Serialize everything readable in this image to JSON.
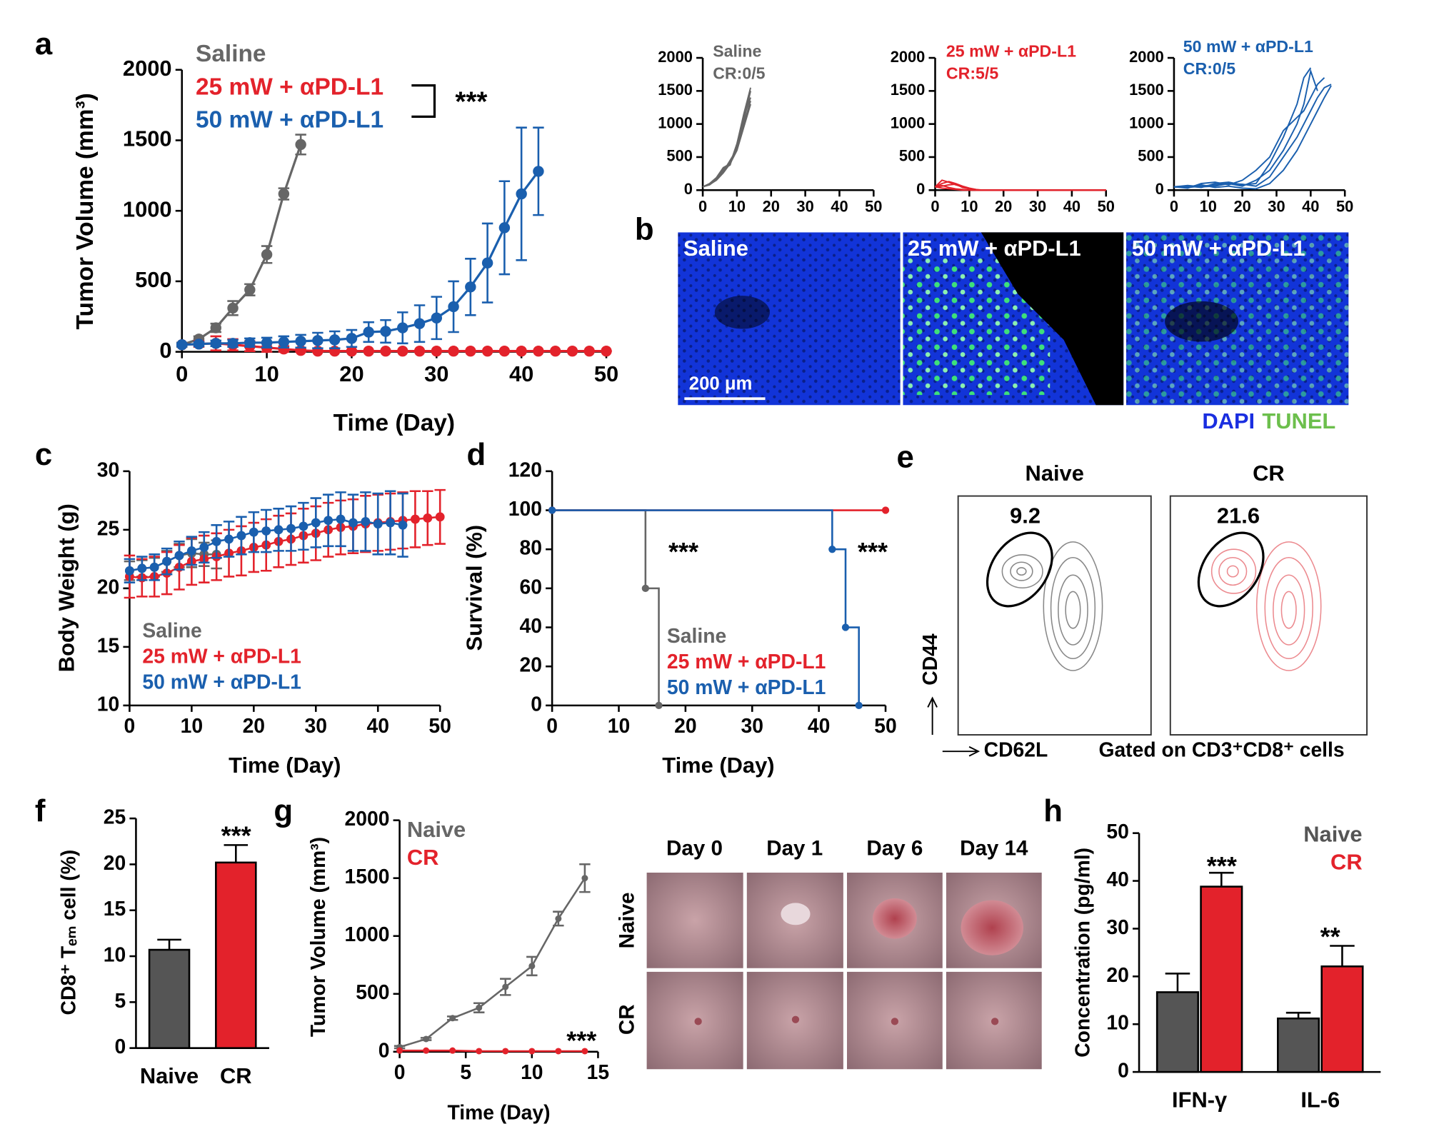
{
  "chart_data": [
    {
      "type": "line",
      "label": "a",
      "xlabel": "Time (Day)",
      "ylabel": "Tumor Volume (mm³)",
      "xlim": [
        0,
        50
      ],
      "ylim": [
        0,
        2000
      ],
      "xticks": [
        0,
        10,
        20,
        30,
        40,
        50
      ],
      "yticks": [
        0,
        500,
        1000,
        1500,
        2000
      ],
      "markers": true,
      "annotations": [
        "***"
      ],
      "series": [
        {
          "name": "Saline",
          "color": "#666666",
          "x": [
            0,
            2,
            4,
            6,
            8,
            10,
            12,
            14
          ],
          "values": [
            50,
            90,
            170,
            310,
            440,
            690,
            1120,
            1470
          ],
          "errors": [
            15,
            20,
            30,
            50,
            40,
            60,
            40,
            70
          ]
        },
        {
          "name": "25 mW + αPD-L1",
          "color": "#e3222b",
          "x": [
            0,
            2,
            4,
            6,
            8,
            10,
            12,
            14,
            16,
            18,
            20,
            22,
            24,
            26,
            28,
            30,
            32,
            34,
            36,
            38,
            40,
            42,
            44,
            46,
            48,
            50
          ],
          "values": [
            50,
            55,
            60,
            50,
            40,
            30,
            20,
            10,
            5,
            5,
            5,
            5,
            5,
            5,
            5,
            5,
            5,
            5,
            5,
            5,
            5,
            5,
            5,
            5,
            5,
            5
          ],
          "errors": [
            5,
            20,
            50,
            40,
            35,
            30,
            20,
            10,
            5,
            0,
            0,
            0,
            0,
            0,
            0,
            0,
            0,
            0,
            0,
            0,
            0,
            0,
            0,
            0,
            0,
            0
          ]
        },
        {
          "name": "50 mW + αPD-L1",
          "color": "#1a5fae",
          "x": [
            0,
            2,
            4,
            6,
            8,
            10,
            12,
            14,
            16,
            18,
            20,
            22,
            24,
            26,
            28,
            30,
            32,
            34,
            36,
            38,
            40,
            42
          ],
          "values": [
            50,
            55,
            60,
            60,
            65,
            65,
            70,
            75,
            80,
            85,
            95,
            140,
            145,
            170,
            200,
            240,
            320,
            460,
            630,
            880,
            1120,
            1280
          ],
          "errors": [
            10,
            15,
            20,
            25,
            30,
            35,
            40,
            45,
            55,
            60,
            60,
            70,
            80,
            110,
            130,
            150,
            180,
            200,
            280,
            330,
            470,
            310
          ]
        }
      ]
    },
    {
      "type": "line",
      "title": "Saline",
      "subtitle": "CR:0/5",
      "color": "#666666",
      "xlim": [
        0,
        50
      ],
      "ylim": [
        0,
        2000
      ],
      "xticks": [
        0,
        10,
        20,
        30,
        40,
        50
      ],
      "yticks": [
        0,
        500,
        1000,
        1500,
        2000
      ],
      "x": [
        0,
        2,
        4,
        6,
        8,
        10,
        12,
        14
      ],
      "series": [
        {
          "values": [
            50,
            90,
            170,
            300,
            420,
            650,
            1050,
            1500
          ]
        },
        {
          "values": [
            50,
            100,
            190,
            340,
            400,
            700,
            1100,
            1400
          ]
        },
        {
          "values": [
            50,
            80,
            160,
            280,
            450,
            620,
            1000,
            1350
          ]
        },
        {
          "values": [
            50,
            95,
            180,
            320,
            380,
            700,
            1150,
            1550
          ]
        },
        {
          "values": [
            50,
            85,
            150,
            260,
            400,
            600,
            950,
            1300
          ]
        }
      ]
    },
    {
      "type": "line",
      "title": "25 mW + αPD-L1",
      "subtitle": "CR:5/5",
      "color": "#e3222b",
      "xlim": [
        0,
        50
      ],
      "ylim": [
        0,
        2000
      ],
      "xticks": [
        0,
        10,
        20,
        30,
        40,
        50
      ],
      "yticks": [
        0,
        500,
        1000,
        1500,
        2000
      ],
      "x": [
        0,
        2,
        4,
        6,
        8,
        10,
        12,
        14,
        16,
        18,
        20,
        25,
        30,
        35,
        40,
        45,
        50
      ],
      "series": [
        {
          "values": [
            50,
            150,
            120,
            80,
            50,
            20,
            0,
            0,
            0,
            0,
            0,
            0,
            0,
            0,
            0,
            0,
            0
          ]
        },
        {
          "values": [
            50,
            100,
            130,
            100,
            60,
            30,
            10,
            0,
            0,
            0,
            0,
            0,
            0,
            0,
            0,
            0,
            0
          ]
        },
        {
          "values": [
            50,
            60,
            80,
            90,
            40,
            20,
            0,
            0,
            0,
            0,
            0,
            0,
            0,
            0,
            0,
            0,
            0
          ]
        },
        {
          "values": [
            50,
            70,
            40,
            20,
            10,
            0,
            0,
            0,
            0,
            0,
            0,
            0,
            0,
            0,
            0,
            0,
            0
          ]
        },
        {
          "values": [
            50,
            30,
            20,
            10,
            0,
            0,
            0,
            0,
            0,
            0,
            0,
            0,
            0,
            0,
            0,
            0,
            0
          ]
        }
      ]
    },
    {
      "type": "line",
      "title": "50 mW + αPD-L1",
      "subtitle": "CR:0/5",
      "color": "#1a5fae",
      "xlim": [
        0,
        50
      ],
      "ylim": [
        0,
        2000
      ],
      "xticks": [
        0,
        10,
        20,
        30,
        40,
        50
      ],
      "yticks": [
        0,
        500,
        1000,
        1500,
        2000
      ],
      "x": [
        0,
        4,
        8,
        12,
        16,
        20,
        24,
        28,
        32,
        36,
        38,
        40,
        42,
        44,
        46
      ],
      "series": [
        {
          "values": [
            50,
            40,
            60,
            80,
            100,
            60,
            150,
            300,
            600,
            1000,
            1300,
            1800,
            1500,
            null,
            null
          ]
        },
        {
          "values": [
            50,
            60,
            40,
            100,
            120,
            80,
            100,
            400,
            800,
            1300,
            1700,
            1850,
            null,
            null,
            null
          ]
        },
        {
          "values": [
            50,
            30,
            100,
            120,
            80,
            150,
            300,
            500,
            900,
            1100,
            1200,
            1400,
            1600,
            1700,
            null
          ]
        },
        {
          "values": [
            50,
            70,
            50,
            60,
            100,
            90,
            60,
            200,
            500,
            800,
            1000,
            1200,
            1400,
            1550,
            1600
          ]
        },
        {
          "values": [
            50,
            50,
            80,
            40,
            60,
            30,
            20,
            100,
            300,
            600,
            800,
            1000,
            1200,
            1400,
            1580
          ]
        }
      ]
    },
    {
      "type": "line",
      "label": "c",
      "xlabel": "Time (Day)",
      "ylabel": "Body Weight (g)",
      "xlim": [
        0,
        50
      ],
      "ylim": [
        10,
        30
      ],
      "xticks": [
        0,
        10,
        20,
        30,
        40,
        50
      ],
      "yticks": [
        10,
        15,
        20,
        25,
        30
      ],
      "markers": true,
      "series": [
        {
          "name": "Saline",
          "color": "#666666",
          "x": [
            0,
            2,
            4,
            6,
            8,
            10,
            12,
            14
          ],
          "values": [
            21.5,
            21.7,
            21.8,
            22.3,
            22.8,
            23.0,
            22.9,
            22.9
          ],
          "errors": [
            0.8,
            0.7,
            0.8,
            0.9,
            1.0,
            1.2,
            1.0,
            1.2
          ]
        },
        {
          "name": "25 mW + αPD-L1",
          "color": "#e3222b",
          "x": [
            0,
            2,
            4,
            6,
            8,
            10,
            12,
            14,
            16,
            18,
            20,
            22,
            24,
            26,
            28,
            30,
            32,
            34,
            36,
            38,
            40,
            42,
            44,
            46,
            48,
            50
          ],
          "values": [
            21.0,
            20.9,
            21.0,
            21.3,
            21.8,
            22.3,
            22.5,
            22.7,
            23.0,
            23.2,
            23.5,
            23.7,
            24.0,
            24.2,
            24.5,
            24.7,
            25.0,
            25.2,
            25.3,
            25.5,
            25.6,
            25.7,
            25.8,
            25.9,
            26.0,
            26.1
          ],
          "errors": [
            1.8,
            1.6,
            1.7,
            1.8,
            1.9,
            2.0,
            2.0,
            2.0,
            2.0,
            2.1,
            2.1,
            2.2,
            2.2,
            2.2,
            2.3,
            2.3,
            2.3,
            2.3,
            2.3,
            2.4,
            2.4,
            2.4,
            2.4,
            2.4,
            2.3,
            2.3
          ]
        },
        {
          "name": "50 mW + αPD-L1",
          "color": "#1a5fae",
          "x": [
            0,
            2,
            4,
            6,
            8,
            10,
            12,
            14,
            16,
            18,
            20,
            22,
            24,
            26,
            28,
            30,
            32,
            34,
            36,
            38,
            40,
            42,
            44
          ],
          "values": [
            21.5,
            21.7,
            21.8,
            22.3,
            22.8,
            23.2,
            23.5,
            24.0,
            24.2,
            24.5,
            24.8,
            24.9,
            25.0,
            25.1,
            25.3,
            25.6,
            25.8,
            25.9,
            25.6,
            25.7,
            25.5,
            25.6,
            25.4
          ],
          "errors": [
            1.0,
            1.0,
            1.1,
            1.1,
            1.2,
            1.2,
            1.3,
            1.4,
            1.5,
            1.6,
            1.7,
            1.8,
            1.8,
            1.9,
            2.0,
            2.1,
            2.2,
            2.3,
            2.4,
            2.5,
            2.6,
            2.7,
            2.7
          ]
        }
      ]
    },
    {
      "type": "step",
      "label": "d",
      "xlabel": "Time  (Day)",
      "ylabel": "Survival (%)",
      "xlim": [
        0,
        50
      ],
      "ylim": [
        0,
        120
      ],
      "xticks": [
        0,
        10,
        20,
        30,
        40,
        50
      ],
      "yticks": [
        0,
        20,
        40,
        60,
        80,
        100,
        120
      ],
      "markers": true,
      "annotations": [
        "***",
        "***"
      ],
      "series": [
        {
          "name": "Saline",
          "color": "#666666",
          "x": [
            0,
            14,
            16
          ],
          "values": [
            100,
            60,
            0
          ]
        },
        {
          "name": "25 mW + αPD-L1",
          "color": "#e3222b",
          "x": [
            0,
            50
          ],
          "values": [
            100,
            100
          ]
        },
        {
          "name": "50 mW + αPD-L1",
          "color": "#1a5fae",
          "x": [
            0,
            42,
            44,
            46
          ],
          "values": [
            100,
            80,
            40,
            0
          ]
        }
      ]
    },
    {
      "type": "bar",
      "label": "f",
      "ylabel": "CD8⁺ Tₑₘ cell (%)",
      "categories": [
        "Naive",
        "CR"
      ],
      "values": [
        10.7,
        20.2
      ],
      "errors": [
        1.1,
        1.9
      ],
      "colors": [
        "#555555",
        "#e3222b"
      ],
      "ylim": [
        0,
        25
      ],
      "yticks": [
        0,
        5,
        10,
        15,
        20,
        25
      ],
      "annotations": [
        "***"
      ]
    },
    {
      "type": "line",
      "label": "g",
      "xlabel": "Time (Day)",
      "ylabel": "Tumor Volume (mm³)",
      "xlim": [
        0,
        15
      ],
      "ylim": [
        0,
        2000
      ],
      "xticks": [
        0,
        5,
        10,
        15
      ],
      "yticks": [
        0,
        500,
        1000,
        1500,
        2000
      ],
      "markers": true,
      "annotations": [
        "***"
      ],
      "x": [
        0,
        2,
        4,
        6,
        8,
        10,
        12,
        14
      ],
      "series": [
        {
          "name": "Naive",
          "color": "#666666",
          "values": [
            40,
            110,
            290,
            380,
            560,
            740,
            1150,
            1500
          ],
          "errors": [
            10,
            10,
            15,
            40,
            70,
            80,
            60,
            120
          ]
        },
        {
          "name": "CR",
          "color": "#e3222b",
          "values": [
            10,
            10,
            10,
            5,
            5,
            5,
            5,
            5
          ]
        }
      ]
    },
    {
      "type": "bar",
      "label": "h",
      "ylabel": "Concentration (pg/ml)",
      "categories": [
        "IFN-γ",
        "IL-6"
      ],
      "ylim": [
        0,
        50
      ],
      "yticks": [
        0,
        10,
        20,
        30,
        40,
        50
      ],
      "annotations": [
        "***",
        "**"
      ],
      "series": [
        {
          "name": "Naive",
          "color": "#555555",
          "values": [
            16.7,
            11.2
          ],
          "errors": [
            3.9,
            1.2
          ]
        },
        {
          "name": "CR",
          "color": "#e3222b",
          "values": [
            38.8,
            22.1
          ],
          "errors": [
            2.9,
            4.3
          ]
        }
      ]
    }
  ],
  "panel_b": {
    "label": "b",
    "panels": [
      "Saline",
      "25 mW + αPD-L1",
      "50 mW + αPD-L1"
    ],
    "scale_bar": "200 μm",
    "stains": [
      "DAPI",
      "TUNEL"
    ]
  },
  "panel_e": {
    "label": "e",
    "columns": [
      "Naive",
      "CR"
    ],
    "gates": [
      9.2,
      21.6
    ],
    "y_axis": "CD44",
    "x_axis": "CD62L",
    "note": "Gated on CD3⁺CD8⁺ cells"
  },
  "panel_g_photos": {
    "columns": [
      "Day 0",
      "Day 1",
      "Day 6",
      "Day 14"
    ],
    "rows": [
      "Naive",
      "CR"
    ]
  }
}
